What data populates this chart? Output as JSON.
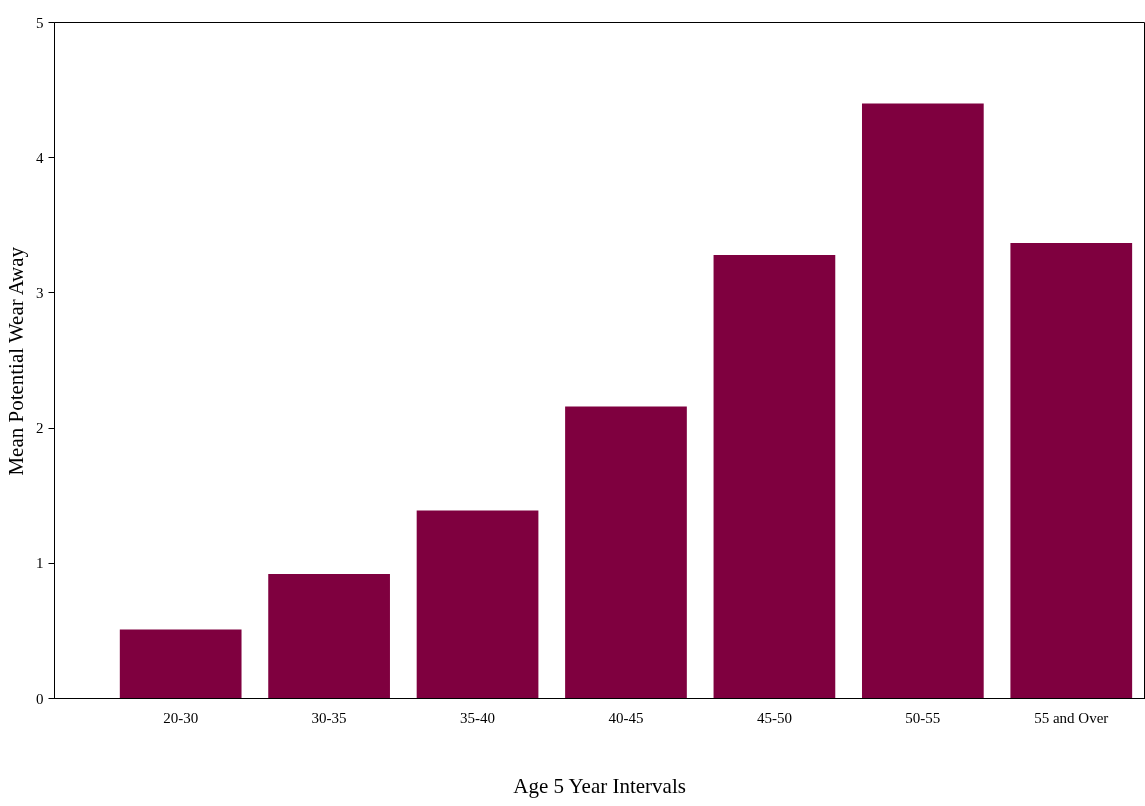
{
  "chart_data": {
    "type": "bar",
    "xlabel": "Age 5 Year Intervals",
    "ylabel": "Mean Potential Wear Away",
    "categories": [
      "20-30",
      "30-35",
      "35-40",
      "40-45",
      "45-50",
      "50-55",
      "55 and Over"
    ],
    "values": [
      0.51,
      0.92,
      1.39,
      2.16,
      3.28,
      4.4,
      3.37
    ],
    "color": "#7f003f",
    "ylim": [
      0,
      5
    ],
    "yticks": [
      0,
      1,
      2,
      3,
      4,
      5
    ],
    "grid": false
  }
}
